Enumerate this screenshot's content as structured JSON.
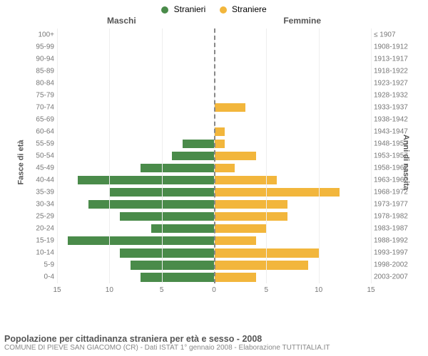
{
  "legend": {
    "male": {
      "label": "Stranieri",
      "color": "#4a8b4a"
    },
    "female": {
      "label": "Straniere",
      "color": "#f2b63c"
    }
  },
  "column_titles": {
    "left": "Maschi",
    "right": "Femmine"
  },
  "yaxis_titles": {
    "left": "Fasce di età",
    "right": "Anni di nascita"
  },
  "chart": {
    "type": "population-pyramid",
    "x_max": 15,
    "x_ticks_left": [
      15,
      10,
      5,
      0
    ],
    "x_ticks_right": [
      0,
      5,
      10,
      15
    ],
    "background_color": "#ffffff",
    "grid_color": "#eeeeee",
    "bar_fill_opacity": 1,
    "rows": [
      {
        "age": "100+",
        "birth": "≤ 1907",
        "m": 0,
        "f": 0
      },
      {
        "age": "95-99",
        "birth": "1908-1912",
        "m": 0,
        "f": 0
      },
      {
        "age": "90-94",
        "birth": "1913-1917",
        "m": 0,
        "f": 0
      },
      {
        "age": "85-89",
        "birth": "1918-1922",
        "m": 0,
        "f": 0
      },
      {
        "age": "80-84",
        "birth": "1923-1927",
        "m": 0,
        "f": 0
      },
      {
        "age": "75-79",
        "birth": "1928-1932",
        "m": 0,
        "f": 0
      },
      {
        "age": "70-74",
        "birth": "1933-1937",
        "m": 0,
        "f": 3
      },
      {
        "age": "65-69",
        "birth": "1938-1942",
        "m": 0,
        "f": 0
      },
      {
        "age": "60-64",
        "birth": "1943-1947",
        "m": 0,
        "f": 1
      },
      {
        "age": "55-59",
        "birth": "1948-1952",
        "m": 3,
        "f": 1
      },
      {
        "age": "50-54",
        "birth": "1953-1957",
        "m": 4,
        "f": 4
      },
      {
        "age": "45-49",
        "birth": "1958-1962",
        "m": 7,
        "f": 2
      },
      {
        "age": "40-44",
        "birth": "1963-1967",
        "m": 13,
        "f": 6
      },
      {
        "age": "35-39",
        "birth": "1968-1972",
        "m": 10,
        "f": 12
      },
      {
        "age": "30-34",
        "birth": "1973-1977",
        "m": 12,
        "f": 7
      },
      {
        "age": "25-29",
        "birth": "1978-1982",
        "m": 9,
        "f": 7
      },
      {
        "age": "20-24",
        "birth": "1983-1987",
        "m": 6,
        "f": 5
      },
      {
        "age": "15-19",
        "birth": "1988-1992",
        "m": 14,
        "f": 4
      },
      {
        "age": "10-14",
        "birth": "1993-1997",
        "m": 9,
        "f": 10
      },
      {
        "age": "5-9",
        "birth": "1998-2002",
        "m": 8,
        "f": 9
      },
      {
        "age": "0-4",
        "birth": "2003-2007",
        "m": 7,
        "f": 4
      }
    ]
  },
  "footer": {
    "title": "Popolazione per cittadinanza straniera per età e sesso - 2008",
    "subtitle": "COMUNE DI PIEVE SAN GIACOMO (CR) - Dati ISTAT 1° gennaio 2008 - Elaborazione TUTTITALIA.IT"
  }
}
